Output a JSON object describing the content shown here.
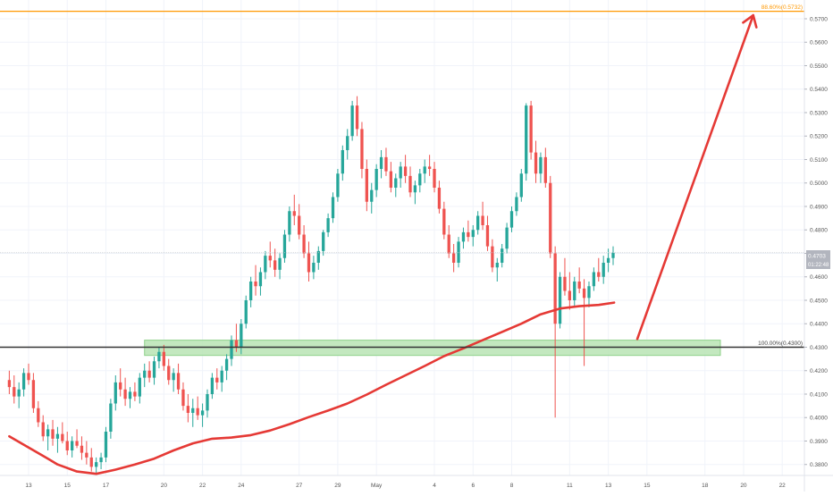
{
  "chart_data": {
    "type": "candlestick",
    "colors": {
      "up": "#26a69a",
      "down": "#ef5350",
      "ema": "#e53935",
      "fib_line": "#ff9800",
      "fib_label": "#ff9800",
      "support_line": "#333333",
      "support_zone": "#b9e4b4",
      "support_zone_border": "#8fd18a",
      "arrow": "#e53935",
      "price_tag_bg": "#b2b5be",
      "grid": "#f0f3fa",
      "axis_text": "#555555"
    },
    "yaxis": {
      "min": 0.374,
      "max": 0.5765,
      "ticks": [
        "0.5700",
        "0.5600",
        "0.5500",
        "0.5400",
        "0.5300",
        "0.5200",
        "0.5100",
        "0.5000",
        "0.4900",
        "0.4800",
        "0.4700",
        "0.4600",
        "0.4500",
        "0.4400",
        "0.4300",
        "0.4200",
        "0.4100",
        "0.4000",
        "0.3900",
        "0.3800"
      ]
    },
    "xaxis": {
      "first_day": -1,
      "last_day": 50.5,
      "ticks": [
        {
          "label": "13",
          "day": 0
        },
        {
          "label": "15",
          "day": 2
        },
        {
          "label": "17",
          "day": 4
        },
        {
          "label": "20",
          "day": 7
        },
        {
          "label": "22",
          "day": 9
        },
        {
          "label": "24",
          "day": 11
        },
        {
          "label": "27",
          "day": 14
        },
        {
          "label": "29",
          "day": 16
        },
        {
          "label": "May",
          "day": 18
        },
        {
          "label": "4",
          "day": 21
        },
        {
          "label": "6",
          "day": 23
        },
        {
          "label": "8",
          "day": 25
        },
        {
          "label": "11",
          "day": 28
        },
        {
          "label": "13",
          "day": 30
        },
        {
          "label": "15",
          "day": 32
        },
        {
          "label": "18",
          "day": 35
        },
        {
          "label": "20",
          "day": 37
        },
        {
          "label": "22",
          "day": 39
        }
      ]
    },
    "current_price": {
      "value": "0.4703",
      "countdown": "01:22:48"
    },
    "fib_levels": [
      {
        "label": "88.60%(0.5732)",
        "value": 0.5732
      },
      {
        "label": "100.00%(0.4300)",
        "value": 0.43
      }
    ],
    "support_zone": {
      "low": 0.4265,
      "high": 0.433,
      "from_day": 6.0,
      "to_day": 35.8
    },
    "ema_200": [
      [
        -1.0,
        0.392
      ],
      [
        0.0,
        0.3872
      ],
      [
        1.0,
        0.3825
      ],
      [
        1.5,
        0.38
      ],
      [
        2.5,
        0.377
      ],
      [
        3.5,
        0.376
      ],
      [
        4.5,
        0.3778
      ],
      [
        5.5,
        0.38
      ],
      [
        6.5,
        0.3825
      ],
      [
        7.5,
        0.386
      ],
      [
        8.5,
        0.389
      ],
      [
        9.5,
        0.391
      ],
      [
        10.5,
        0.3915
      ],
      [
        11.5,
        0.3925
      ],
      [
        12.5,
        0.3945
      ],
      [
        13.5,
        0.3972
      ],
      [
        14.5,
        0.4002
      ],
      [
        15.5,
        0.403
      ],
      [
        16.5,
        0.406
      ],
      [
        17.5,
        0.4098
      ],
      [
        18.5,
        0.414
      ],
      [
        19.5,
        0.418
      ],
      [
        20.5,
        0.422
      ],
      [
        21.5,
        0.4262
      ],
      [
        22.5,
        0.4295
      ],
      [
        23.5,
        0.433
      ],
      [
        24.5,
        0.4365
      ],
      [
        25.5,
        0.44
      ],
      [
        26.5,
        0.444
      ],
      [
        27.5,
        0.4465
      ],
      [
        28.5,
        0.4475
      ],
      [
        29.5,
        0.448
      ],
      [
        30.3,
        0.449
      ]
    ],
    "arrow": {
      "from": {
        "day": 31.5,
        "value": 0.4335
      },
      "to": {
        "day": 37.5,
        "value": 0.5715
      }
    },
    "candles": [
      [
        -1.0,
        0.416,
        0.42,
        0.41,
        0.413
      ],
      [
        -0.75,
        0.413,
        0.418,
        0.406,
        0.409
      ],
      [
        -0.5,
        0.409,
        0.415,
        0.404,
        0.412
      ],
      [
        -0.25,
        0.412,
        0.421,
        0.409,
        0.419
      ],
      [
        0.0,
        0.419,
        0.423,
        0.414,
        0.416
      ],
      [
        0.25,
        0.416,
        0.419,
        0.402,
        0.404
      ],
      [
        0.5,
        0.404,
        0.407,
        0.396,
        0.398
      ],
      [
        0.75,
        0.398,
        0.401,
        0.39,
        0.392
      ],
      [
        1.0,
        0.392,
        0.397,
        0.386,
        0.395
      ],
      [
        1.25,
        0.395,
        0.399,
        0.388,
        0.391
      ],
      [
        1.5,
        0.391,
        0.396,
        0.385,
        0.393
      ],
      [
        1.75,
        0.393,
        0.398,
        0.389,
        0.39
      ],
      [
        2.0,
        0.39,
        0.394,
        0.384,
        0.386
      ],
      [
        2.25,
        0.386,
        0.392,
        0.383,
        0.39
      ],
      [
        2.5,
        0.39,
        0.395,
        0.387,
        0.388
      ],
      [
        2.75,
        0.388,
        0.392,
        0.382,
        0.385
      ],
      [
        3.0,
        0.385,
        0.39,
        0.38,
        0.383
      ],
      [
        3.25,
        0.383,
        0.387,
        0.377,
        0.379
      ],
      [
        3.5,
        0.379,
        0.383,
        0.376,
        0.381
      ],
      [
        3.75,
        0.381,
        0.385,
        0.378,
        0.383
      ],
      [
        4.0,
        0.383,
        0.396,
        0.381,
        0.394
      ],
      [
        4.25,
        0.394,
        0.408,
        0.391,
        0.406
      ],
      [
        4.5,
        0.406,
        0.418,
        0.403,
        0.415
      ],
      [
        4.75,
        0.415,
        0.421,
        0.409,
        0.412
      ],
      [
        5.0,
        0.412,
        0.417,
        0.405,
        0.408
      ],
      [
        5.25,
        0.408,
        0.413,
        0.404,
        0.411
      ],
      [
        5.5,
        0.411,
        0.415,
        0.407,
        0.409
      ],
      [
        5.75,
        0.409,
        0.419,
        0.406,
        0.417
      ],
      [
        6.0,
        0.417,
        0.423,
        0.413,
        0.42
      ],
      [
        6.25,
        0.42,
        0.424,
        0.415,
        0.417
      ],
      [
        6.5,
        0.417,
        0.426,
        0.414,
        0.424
      ],
      [
        6.75,
        0.424,
        0.43,
        0.421,
        0.428
      ],
      [
        7.0,
        0.428,
        0.431,
        0.42,
        0.422
      ],
      [
        7.25,
        0.422,
        0.425,
        0.414,
        0.416
      ],
      [
        7.5,
        0.416,
        0.421,
        0.411,
        0.419
      ],
      [
        7.75,
        0.419,
        0.423,
        0.41,
        0.412
      ],
      [
        8.0,
        0.412,
        0.415,
        0.403,
        0.405
      ],
      [
        8.25,
        0.405,
        0.41,
        0.398,
        0.402
      ],
      [
        8.5,
        0.402,
        0.408,
        0.396,
        0.404
      ],
      [
        8.75,
        0.404,
        0.409,
        0.399,
        0.401
      ],
      [
        9.0,
        0.401,
        0.406,
        0.396,
        0.403
      ],
      [
        9.25,
        0.403,
        0.412,
        0.4,
        0.41
      ],
      [
        9.5,
        0.41,
        0.419,
        0.408,
        0.417
      ],
      [
        9.75,
        0.417,
        0.421,
        0.412,
        0.415
      ],
      [
        10.0,
        0.415,
        0.422,
        0.411,
        0.42
      ],
      [
        10.25,
        0.42,
        0.427,
        0.416,
        0.425
      ],
      [
        10.5,
        0.425,
        0.435,
        0.422,
        0.433
      ],
      [
        10.75,
        0.433,
        0.44,
        0.428,
        0.43
      ],
      [
        11.0,
        0.43,
        0.442,
        0.427,
        0.44
      ],
      [
        11.25,
        0.44,
        0.452,
        0.438,
        0.45
      ],
      [
        11.5,
        0.45,
        0.46,
        0.447,
        0.458
      ],
      [
        11.75,
        0.458,
        0.465,
        0.452,
        0.456
      ],
      [
        12.0,
        0.456,
        0.464,
        0.452,
        0.462
      ],
      [
        12.25,
        0.462,
        0.471,
        0.459,
        0.469
      ],
      [
        12.5,
        0.469,
        0.475,
        0.464,
        0.467
      ],
      [
        12.75,
        0.467,
        0.472,
        0.46,
        0.463
      ],
      [
        13.0,
        0.463,
        0.47,
        0.459,
        0.468
      ],
      [
        13.25,
        0.468,
        0.48,
        0.466,
        0.478
      ],
      [
        13.5,
        0.478,
        0.49,
        0.475,
        0.488
      ],
      [
        13.75,
        0.488,
        0.495,
        0.482,
        0.486
      ],
      [
        14.0,
        0.486,
        0.491,
        0.476,
        0.478
      ],
      [
        14.25,
        0.478,
        0.482,
        0.468,
        0.47
      ],
      [
        14.5,
        0.47,
        0.475,
        0.458,
        0.462
      ],
      [
        14.75,
        0.462,
        0.469,
        0.459,
        0.466
      ],
      [
        15.0,
        0.466,
        0.473,
        0.463,
        0.471
      ],
      [
        15.25,
        0.471,
        0.48,
        0.469,
        0.479
      ],
      [
        15.5,
        0.479,
        0.487,
        0.477,
        0.485
      ],
      [
        15.75,
        0.485,
        0.496,
        0.483,
        0.494
      ],
      [
        16.0,
        0.494,
        0.506,
        0.492,
        0.504
      ],
      [
        16.25,
        0.504,
        0.516,
        0.501,
        0.514
      ],
      [
        16.5,
        0.514,
        0.523,
        0.51,
        0.52
      ],
      [
        16.75,
        0.52,
        0.535,
        0.518,
        0.533
      ],
      [
        17.0,
        0.533,
        0.537,
        0.52,
        0.523
      ],
      [
        17.25,
        0.523,
        0.526,
        0.502,
        0.506
      ],
      [
        17.5,
        0.506,
        0.51,
        0.488,
        0.492
      ],
      [
        17.75,
        0.492,
        0.5,
        0.487,
        0.497
      ],
      [
        18.0,
        0.497,
        0.508,
        0.494,
        0.506
      ],
      [
        18.25,
        0.506,
        0.514,
        0.502,
        0.511
      ],
      [
        18.5,
        0.511,
        0.515,
        0.503,
        0.505
      ],
      [
        18.75,
        0.505,
        0.509,
        0.496,
        0.498
      ],
      [
        19.0,
        0.498,
        0.504,
        0.494,
        0.502
      ],
      [
        19.25,
        0.502,
        0.509,
        0.498,
        0.507
      ],
      [
        19.5,
        0.507,
        0.512,
        0.5,
        0.503
      ],
      [
        19.75,
        0.503,
        0.507,
        0.494,
        0.496
      ],
      [
        20.0,
        0.496,
        0.501,
        0.491,
        0.499
      ],
      [
        20.25,
        0.499,
        0.506,
        0.496,
        0.504
      ],
      [
        20.5,
        0.504,
        0.51,
        0.5,
        0.507
      ],
      [
        20.75,
        0.507,
        0.512,
        0.503,
        0.506
      ],
      [
        21.0,
        0.506,
        0.509,
        0.496,
        0.498
      ],
      [
        21.25,
        0.498,
        0.501,
        0.487,
        0.489
      ],
      [
        21.5,
        0.489,
        0.492,
        0.476,
        0.478
      ],
      [
        21.75,
        0.478,
        0.482,
        0.468,
        0.47
      ],
      [
        22.0,
        0.47,
        0.474,
        0.462,
        0.466
      ],
      [
        22.25,
        0.466,
        0.477,
        0.464,
        0.475
      ],
      [
        22.5,
        0.475,
        0.481,
        0.472,
        0.479
      ],
      [
        22.75,
        0.479,
        0.484,
        0.475,
        0.477
      ],
      [
        23.0,
        0.477,
        0.482,
        0.473,
        0.48
      ],
      [
        23.25,
        0.48,
        0.488,
        0.478,
        0.486
      ],
      [
        23.5,
        0.486,
        0.492,
        0.48,
        0.482
      ],
      [
        23.75,
        0.482,
        0.486,
        0.471,
        0.473
      ],
      [
        24.0,
        0.473,
        0.476,
        0.462,
        0.464
      ],
      [
        24.25,
        0.464,
        0.468,
        0.458,
        0.466
      ],
      [
        24.5,
        0.466,
        0.474,
        0.464,
        0.472
      ],
      [
        24.75,
        0.472,
        0.483,
        0.47,
        0.481
      ],
      [
        25.0,
        0.481,
        0.49,
        0.479,
        0.488
      ],
      [
        25.25,
        0.488,
        0.496,
        0.486,
        0.494
      ],
      [
        25.5,
        0.494,
        0.506,
        0.492,
        0.504
      ],
      [
        25.75,
        0.504,
        0.534,
        0.501,
        0.533
      ],
      [
        26.0,
        0.533,
        0.535,
        0.51,
        0.513
      ],
      [
        26.25,
        0.513,
        0.518,
        0.5,
        0.504
      ],
      [
        26.5,
        0.504,
        0.513,
        0.5,
        0.511
      ],
      [
        26.75,
        0.511,
        0.515,
        0.498,
        0.5
      ],
      [
        27.0,
        0.5,
        0.503,
        0.468,
        0.47
      ],
      [
        27.25,
        0.47,
        0.473,
        0.4,
        0.44
      ],
      [
        27.5,
        0.44,
        0.462,
        0.438,
        0.46
      ],
      [
        27.75,
        0.46,
        0.468,
        0.452,
        0.454
      ],
      [
        28.0,
        0.454,
        0.462,
        0.446,
        0.45
      ],
      [
        28.25,
        0.45,
        0.46,
        0.447,
        0.458
      ],
      [
        28.5,
        0.458,
        0.464,
        0.453,
        0.455
      ],
      [
        28.75,
        0.455,
        0.459,
        0.422,
        0.451
      ],
      [
        29.0,
        0.451,
        0.458,
        0.447,
        0.456
      ],
      [
        29.25,
        0.456,
        0.464,
        0.454,
        0.462
      ],
      [
        29.5,
        0.462,
        0.468,
        0.458,
        0.46
      ],
      [
        29.75,
        0.46,
        0.469,
        0.457,
        0.466
      ],
      [
        30.0,
        0.466,
        0.472,
        0.462,
        0.468
      ],
      [
        30.25,
        0.468,
        0.473,
        0.465,
        0.4703
      ]
    ]
  }
}
